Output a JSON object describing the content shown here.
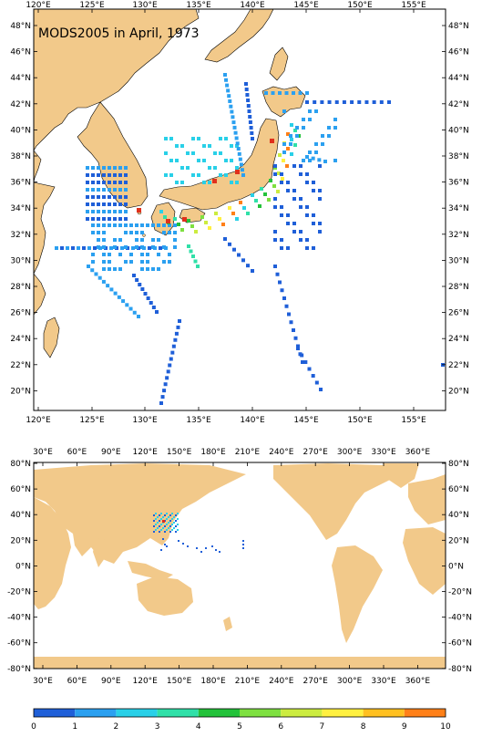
{
  "title": "MODS2005 in April, 1973",
  "colors": {
    "land": "#f2c98a",
    "ocean": "#ffffff",
    "coast": "#000000"
  },
  "top_map": {
    "lon_labels": [
      "120°E",
      "125°E",
      "130°E",
      "135°E",
      "140°E",
      "145°E",
      "150°E",
      "155°E"
    ],
    "lat_labels": [
      "48°N",
      "46°N",
      "44°N",
      "42°N",
      "40°N",
      "38°N",
      "36°N",
      "34°N",
      "32°N",
      "30°N",
      "28°N",
      "26°N",
      "24°N",
      "22°N",
      "20°N"
    ],
    "lon_range": [
      119.5,
      157.5
    ],
    "lat_range": [
      18.5,
      49.5
    ]
  },
  "bottom_map": {
    "lon_labels": [
      "30°E",
      "60°E",
      "90°E",
      "120°E",
      "150°E",
      "180°E",
      "210°E",
      "240°E",
      "270°E",
      "300°E",
      "330°E",
      "360°E"
    ],
    "lat_labels": [
      "80°N",
      "60°N",
      "40°N",
      "20°N",
      "0°N",
      "-20°N",
      "-40°N",
      "-60°N",
      "-80°N"
    ]
  },
  "colorbar": {
    "labels": [
      "0",
      "1",
      "2",
      "3",
      "4",
      "5",
      "6",
      "7",
      "8",
      "9",
      "10"
    ],
    "colors": [
      "#1f5fd8",
      "#2ba0f0",
      "#29d0e8",
      "#30e0a8",
      "#23c23a",
      "#7ee040",
      "#ccec40",
      "#fff040",
      "#ffc020",
      "#ff8018"
    ]
  }
}
